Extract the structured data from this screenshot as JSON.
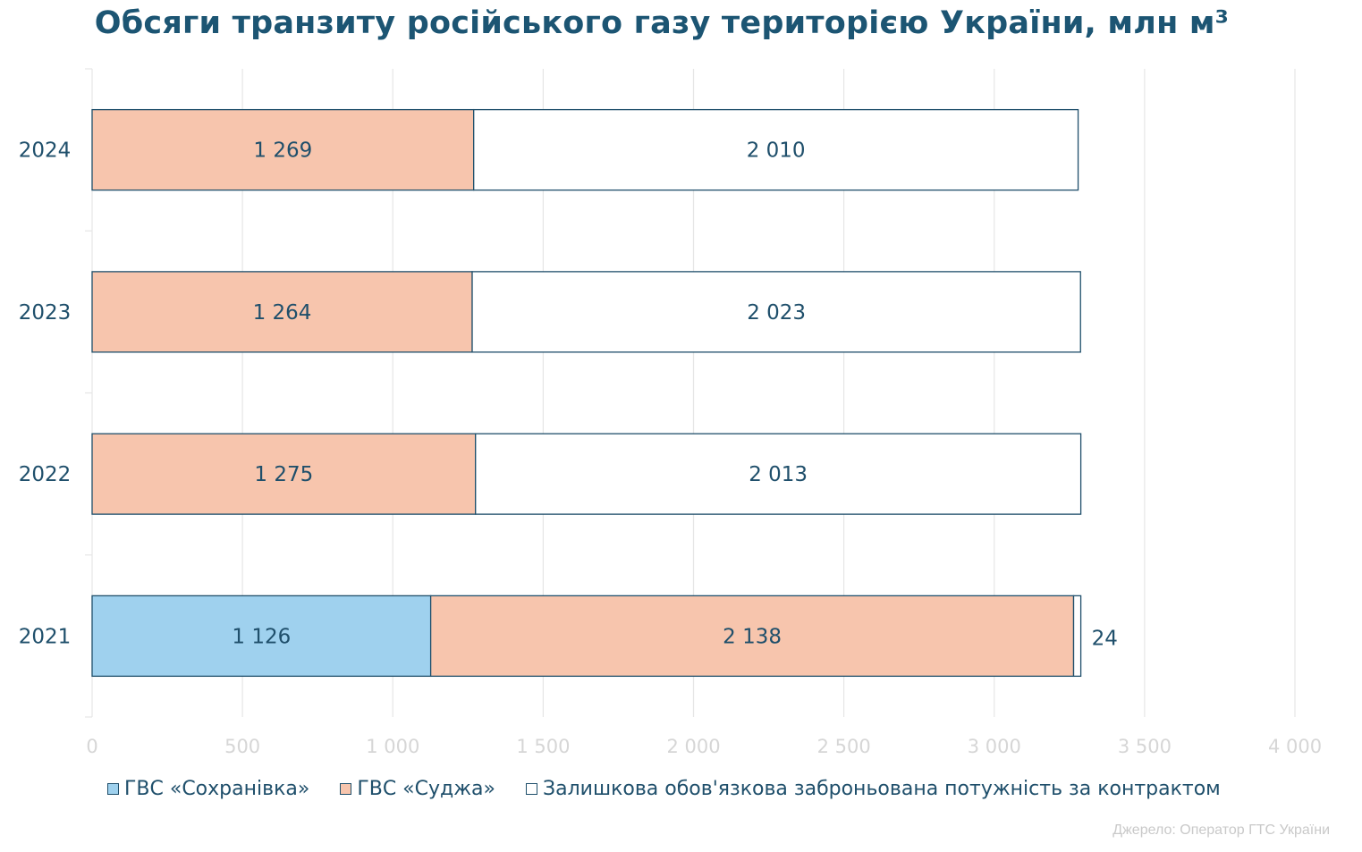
{
  "chart_data": {
    "type": "bar",
    "orientation": "horizontal",
    "stacked": true,
    "title": "Обсяги транзиту російського газу територією України, млн м³",
    "categories": [
      "2024",
      "2023",
      "2022",
      "2021"
    ],
    "series": [
      {
        "name": "ГВС «Сохранівка»",
        "color": "#9fd1ee",
        "values": [
          0,
          0,
          0,
          1126
        ],
        "labels": [
          "",
          "",
          "",
          "1 126"
        ]
      },
      {
        "name": "ГВС «Суджа»",
        "color": "#f7c5ad",
        "values": [
          1269,
          1264,
          1275,
          2138
        ],
        "labels": [
          "1 269",
          "1 264",
          "1 275",
          "2 138"
        ]
      },
      {
        "name": "Залишкова обов'язкова заброньована потужність за контрактом",
        "color": "#ffffff",
        "values": [
          2010,
          2023,
          2013,
          24
        ],
        "labels": [
          "2 010",
          "2 023",
          "2 013",
          "24"
        ]
      }
    ],
    "xlim": [
      0,
      4000
    ],
    "x_ticks": [
      0,
      500,
      1000,
      1500,
      2000,
      2500,
      3000,
      3500,
      4000
    ],
    "x_tick_labels": [
      "0",
      "500",
      "1 000",
      "1 500",
      "2 000",
      "2 500",
      "3 000",
      "3 500",
      "4 000"
    ],
    "grid": true,
    "legend_position": "bottom"
  },
  "source": "Джерело: Оператор ГТС України",
  "colors": {
    "title": "#1c5573",
    "text": "#1f4f6b",
    "grid": "#e6e6e6",
    "axis_labels": "#d6d6d6"
  }
}
